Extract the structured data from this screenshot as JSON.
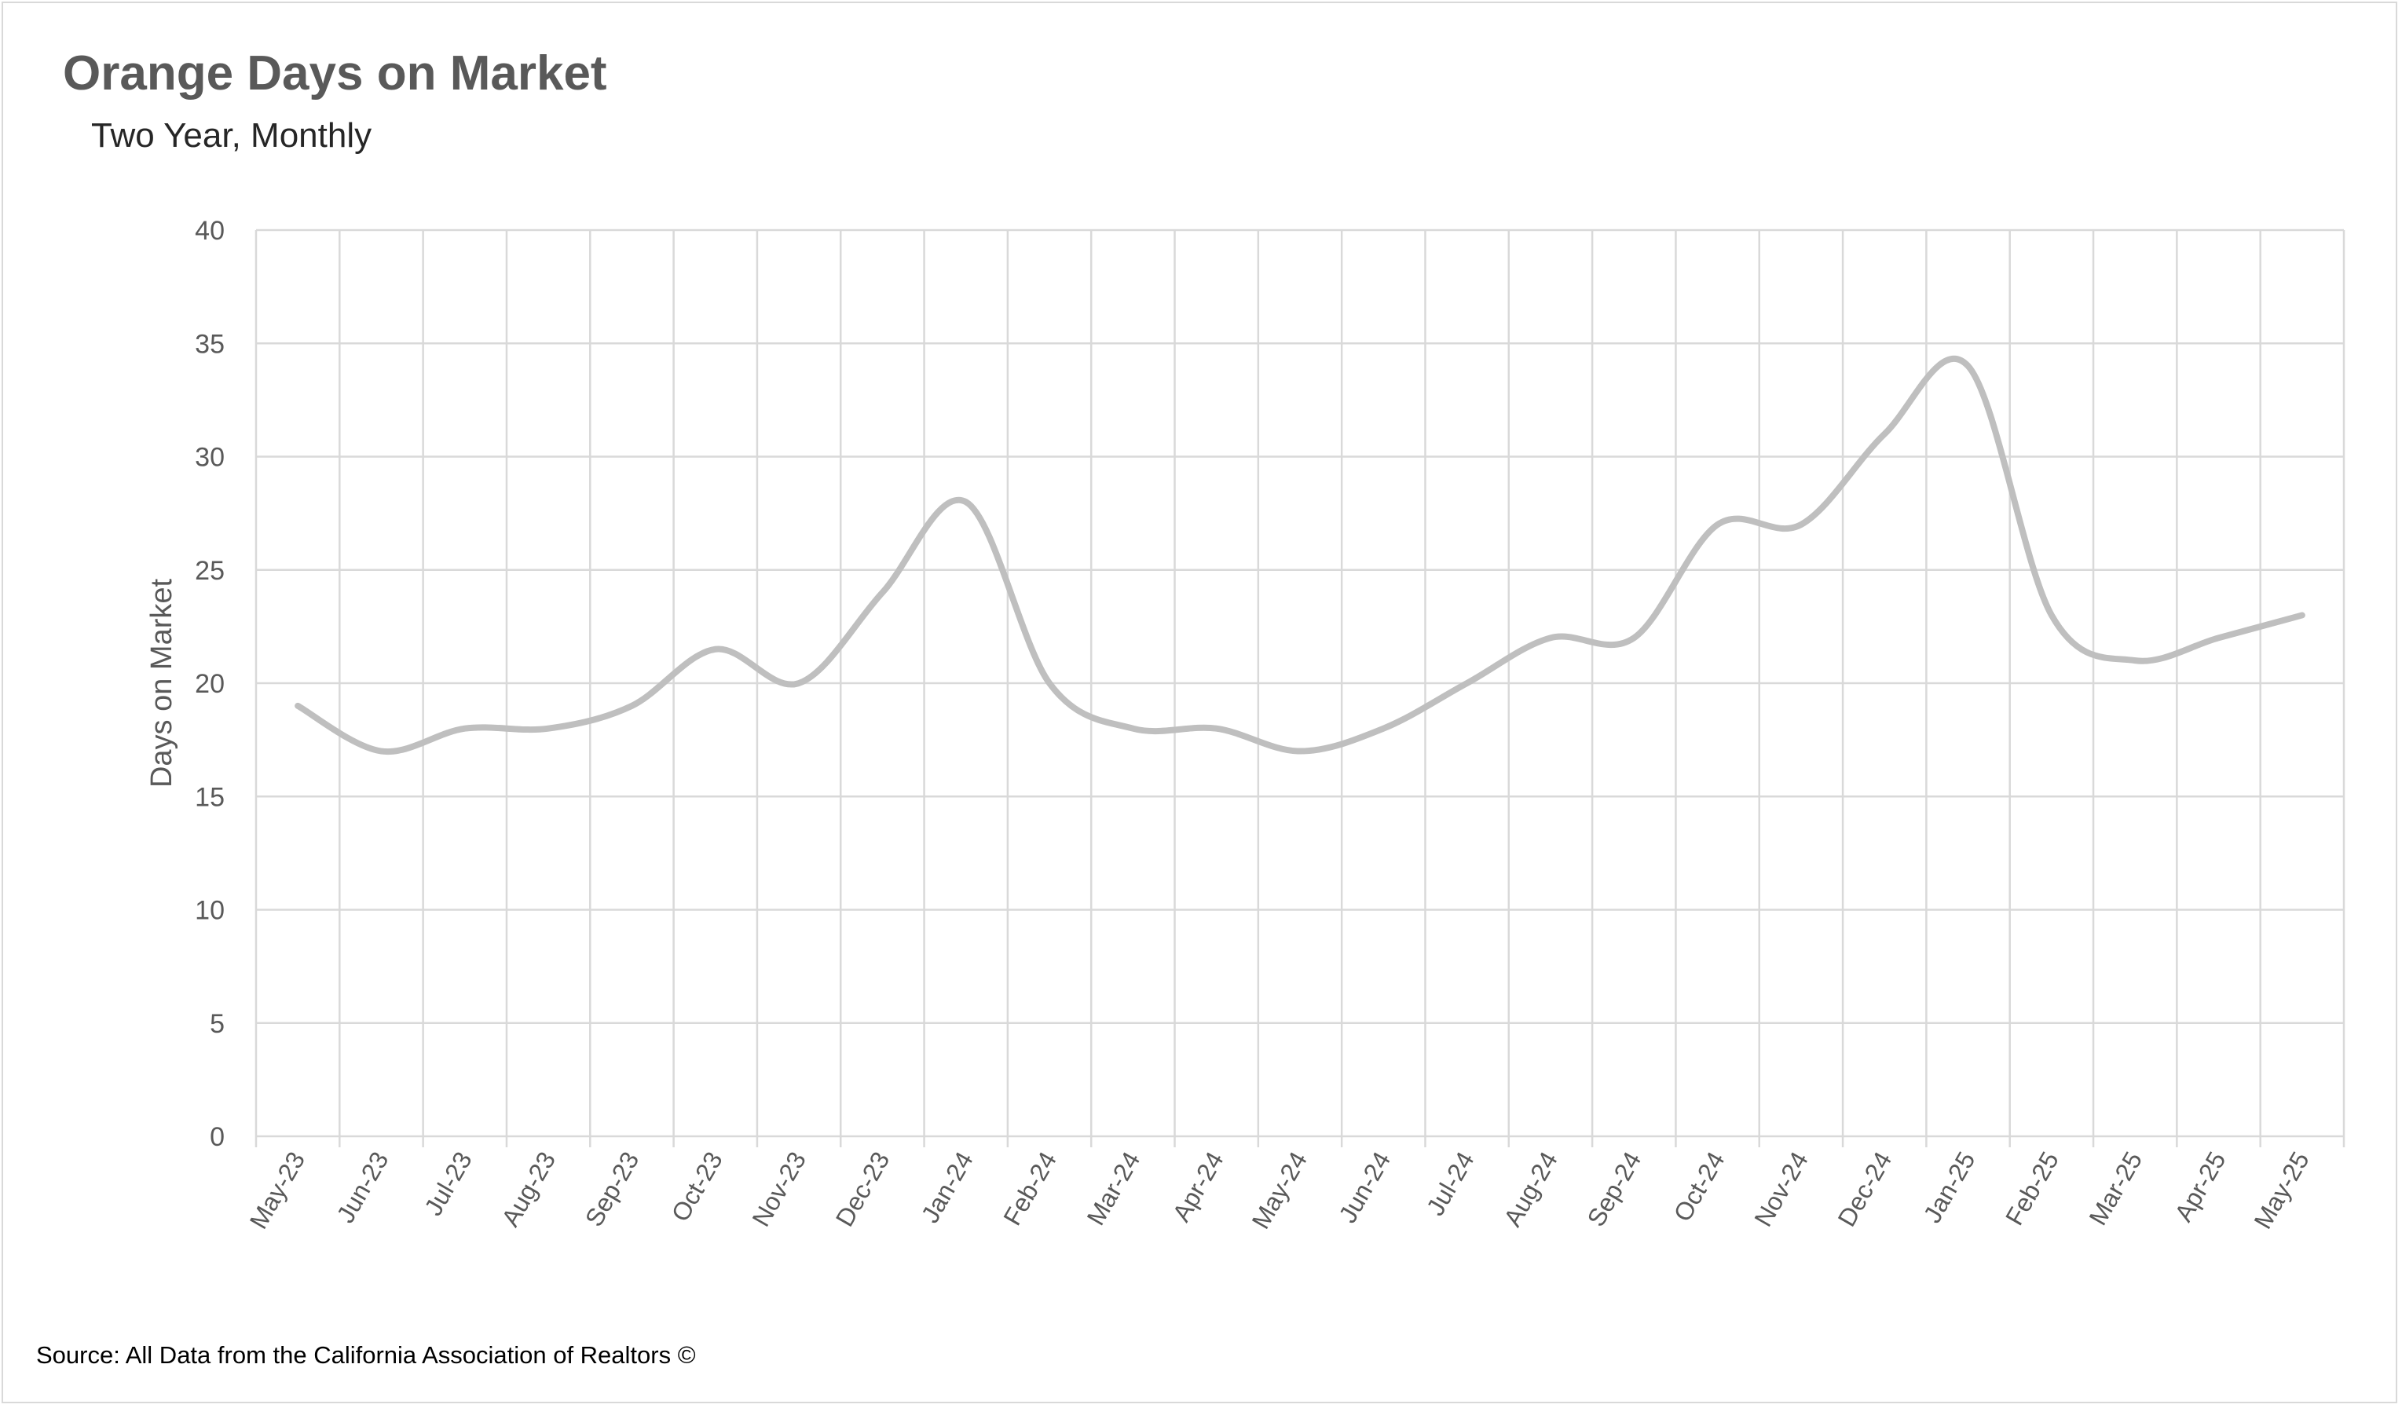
{
  "title": "Orange Days on Market",
  "subtitle": "Two Year, Monthly",
  "source": "Source: All Data from the California Association of Realtors ©",
  "colors": {
    "series_line": "#bfbfbf",
    "gridline": "#d9d9d9",
    "text": "#595959"
  },
  "chart_data": {
    "type": "line",
    "categories": [
      "May-23",
      "Jun-23",
      "Jul-23",
      "Aug-23",
      "Sep-23",
      "Oct-23",
      "Nov-23",
      "Dec-23",
      "Jan-24",
      "Feb-24",
      "Mar-24",
      "Apr-24",
      "May-24",
      "Jun-24",
      "Jul-24",
      "Aug-24",
      "Sep-24",
      "Oct-24",
      "Nov-24",
      "Dec-24",
      "Jan-25",
      "Feb-25",
      "Mar-25",
      "Apr-25",
      "May-25"
    ],
    "series": [
      {
        "values": [
          19,
          17,
          18,
          18,
          19,
          21.5,
          20,
          24,
          28,
          20,
          18,
          18,
          17,
          18,
          20,
          22,
          22,
          27,
          27,
          31,
          34,
          23,
          21,
          22,
          23
        ]
      }
    ],
    "title": "Orange Days on Market",
    "subtitle": "Two Year, Monthly",
    "xlabel": "",
    "ylabel": "Days on Market",
    "ylim": [
      0,
      40
    ],
    "yticks": [
      0,
      5,
      10,
      15,
      20,
      25,
      30,
      35,
      40
    ],
    "grid": true,
    "smooth": true,
    "legend": "none"
  }
}
